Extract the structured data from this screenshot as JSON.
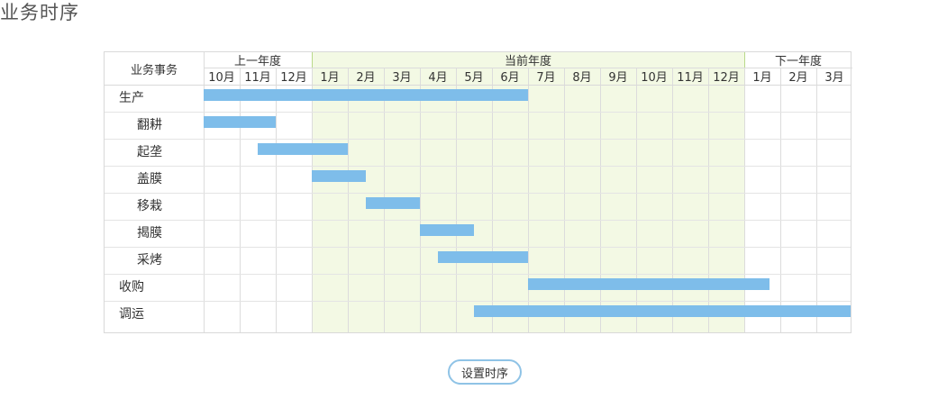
{
  "page": {
    "title": "业务时序"
  },
  "gantt": {
    "corner_label": "业务事务",
    "year_groups": [
      {
        "label": "上一年度",
        "span": 3
      },
      {
        "label": "当前年度",
        "span": 12
      },
      {
        "label": "下一年度",
        "span": 3
      }
    ],
    "months": [
      "10月",
      "11月",
      "12月",
      "1月",
      "2月",
      "3月",
      "4月",
      "5月",
      "6月",
      "7月",
      "8月",
      "9月",
      "10月",
      "11月",
      "12月",
      "1月",
      "2月",
      "3月"
    ],
    "rows": [
      {
        "label": "生产",
        "indent": false,
        "start": 0,
        "end": 9
      },
      {
        "label": "翻耕",
        "indent": true,
        "start": 0,
        "end": 2
      },
      {
        "label": "起垄",
        "indent": true,
        "start": 1.5,
        "end": 4
      },
      {
        "label": "盖膜",
        "indent": true,
        "start": 3,
        "end": 4.5
      },
      {
        "label": "移栽",
        "indent": true,
        "start": 4.5,
        "end": 6
      },
      {
        "label": "揭膜",
        "indent": true,
        "start": 6,
        "end": 7.5
      },
      {
        "label": "采烤",
        "indent": true,
        "start": 6.5,
        "end": 9
      },
      {
        "label": "收购",
        "indent": false,
        "start": 9,
        "end": 15.7
      },
      {
        "label": "调运",
        "indent": false,
        "start": 7.5,
        "end": 18
      }
    ],
    "bar_color": "#7ebdea",
    "current_year_bg": "#f3f9e4"
  },
  "actions": {
    "set_sequence_label": "设置时序"
  }
}
